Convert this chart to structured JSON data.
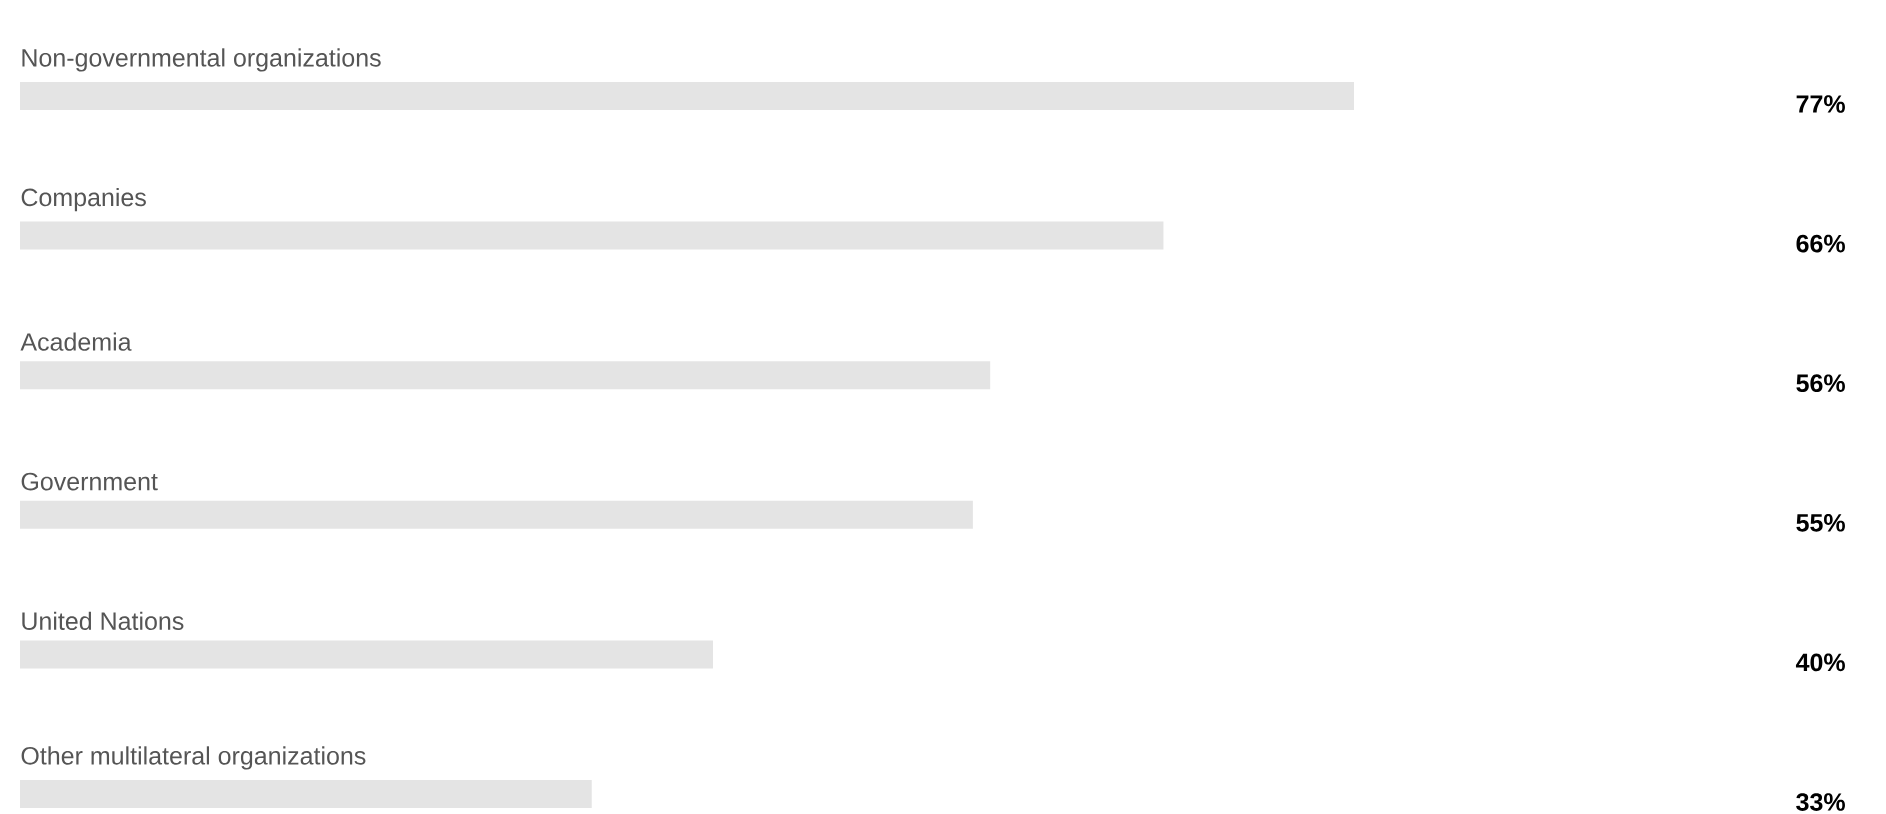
{
  "chart_data": {
    "type": "bar",
    "orientation": "horizontal",
    "categories": [
      "Non-governmental organizations",
      "Companies",
      "Academia",
      "Government",
      "United Nations",
      "Other multilateral organizations"
    ],
    "values": [
      77,
      66,
      56,
      55,
      40,
      33
    ],
    "value_labels": [
      "77%",
      "66%",
      "56%",
      "55%",
      "40%",
      "33%"
    ],
    "color": "#e4e4e4"
  }
}
